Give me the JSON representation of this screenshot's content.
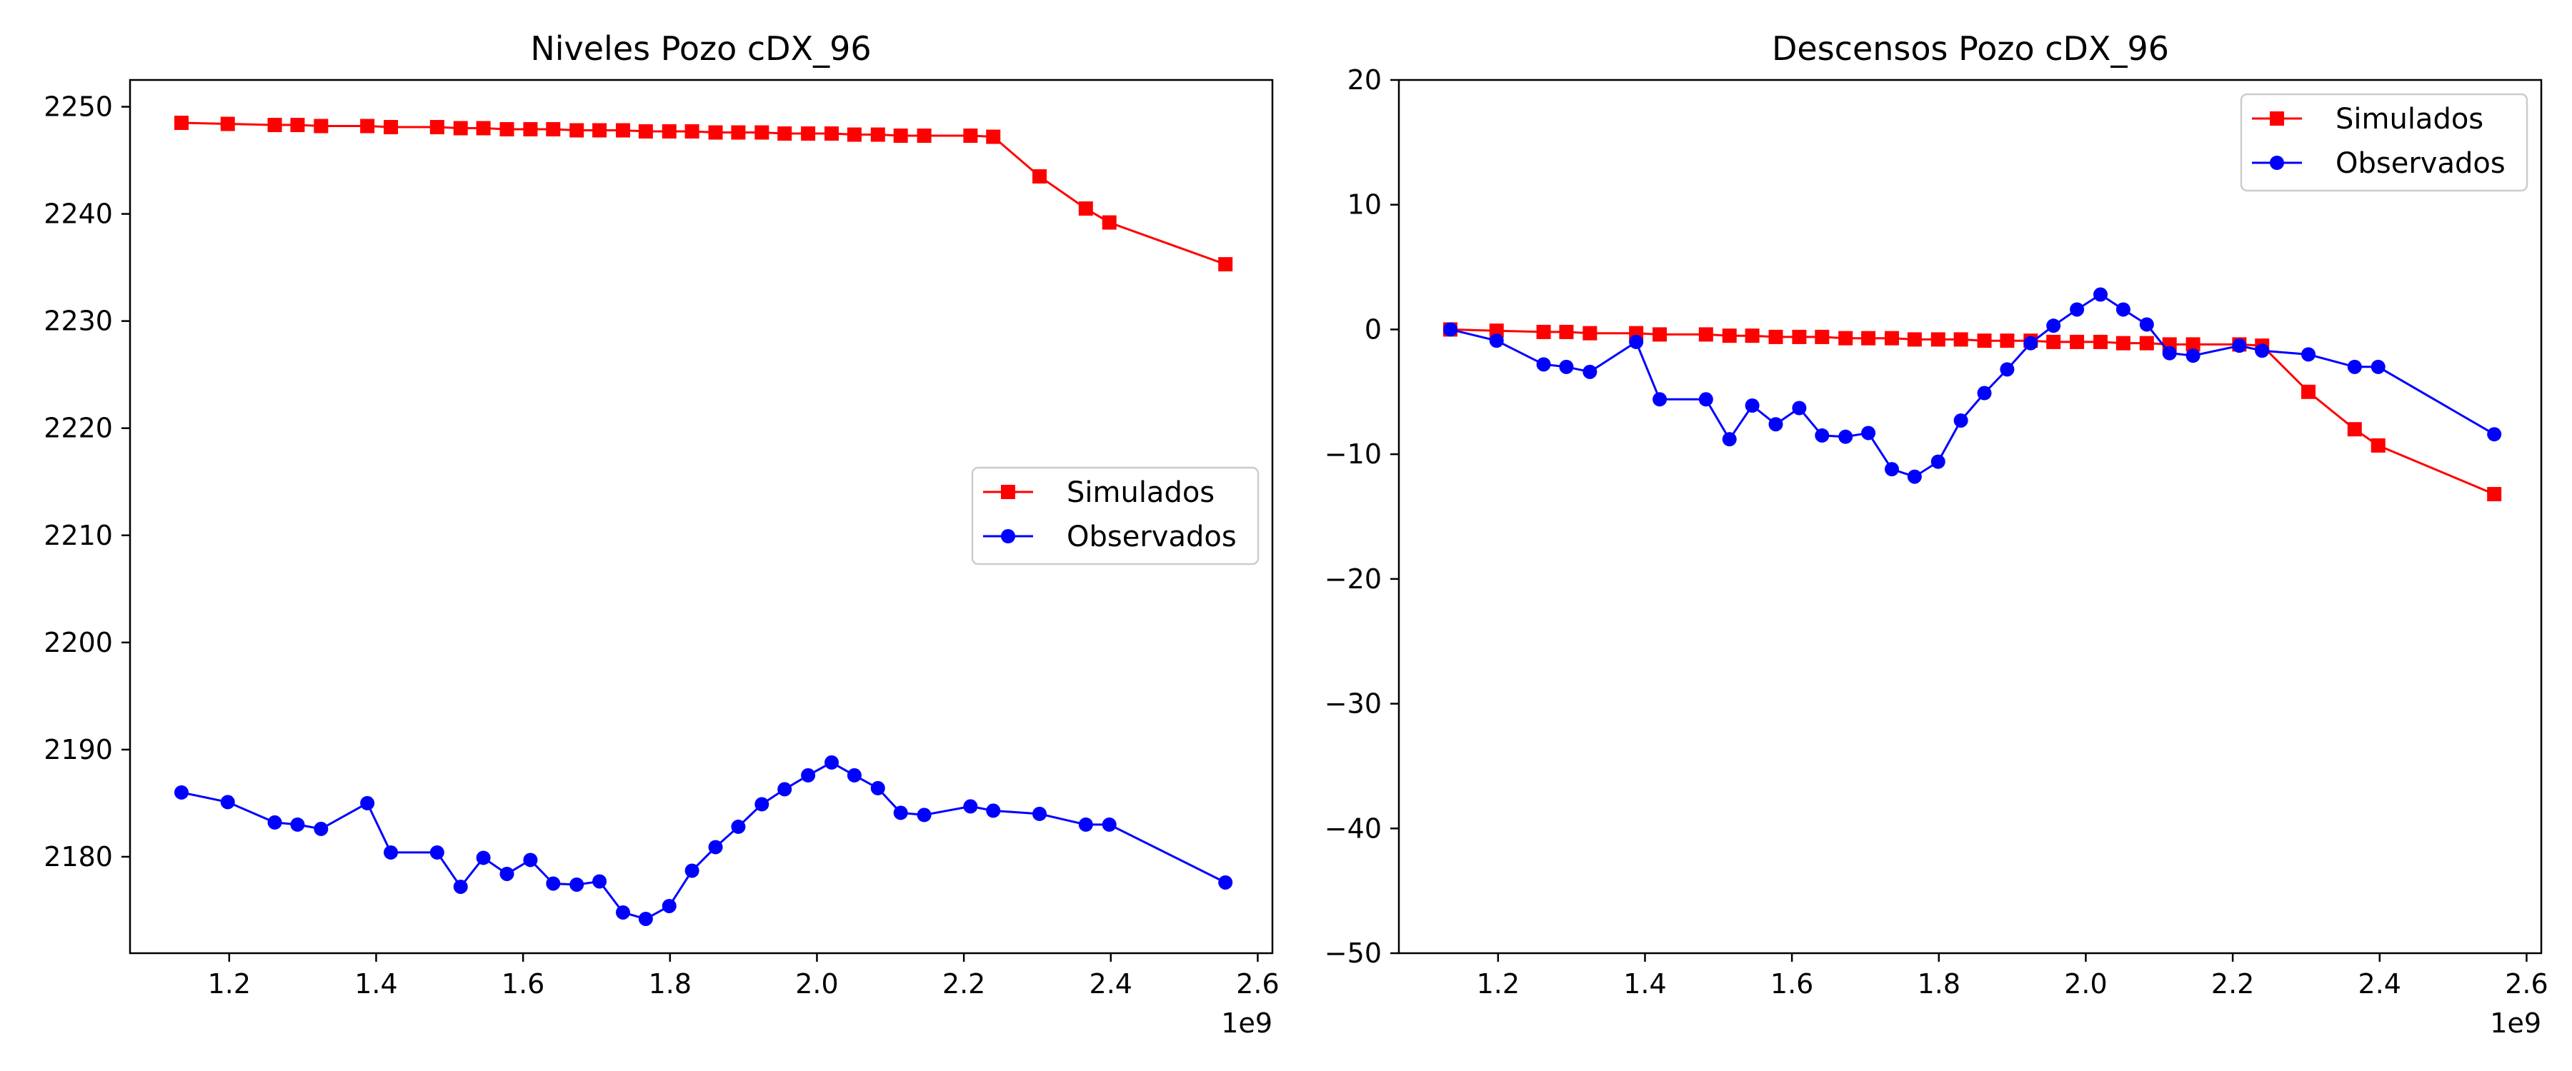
{
  "chart_data": [
    {
      "type": "line",
      "title": "Niveles Pozo cDX_96",
      "xlabel": "",
      "ylabel": "",
      "x_offset_label": "1e9",
      "xlim": [
        1.065,
        2.62
      ],
      "ylim": [
        2171.0,
        2252.5
      ],
      "xticks": [
        1.2,
        1.4,
        1.6,
        1.8,
        2.0,
        2.2,
        2.4,
        2.6
      ],
      "yticks": [
        2180,
        2190,
        2200,
        2210,
        2220,
        2230,
        2240,
        2250
      ],
      "grid": false,
      "legend": "center-right",
      "series": [
        {
          "name": "Simulados",
          "color": "#ff0000",
          "marker": "square",
          "x": [
            1.135,
            1.198,
            1.262,
            1.293,
            1.325,
            1.388,
            1.42,
            1.483,
            1.515,
            1.546,
            1.578,
            1.61,
            1.641,
            1.673,
            1.704,
            1.736,
            1.767,
            1.799,
            1.83,
            1.862,
            1.893,
            1.925,
            1.956,
            1.988,
            2.02,
            2.051,
            2.083,
            2.114,
            2.146,
            2.209,
            2.24,
            2.303,
            2.366,
            2.398,
            2.556
          ],
          "y": [
            2248.5,
            2248.4,
            2248.3,
            2248.3,
            2248.2,
            2248.2,
            2248.1,
            2248.1,
            2248.0,
            2248.0,
            2247.9,
            2247.9,
            2247.9,
            2247.8,
            2247.8,
            2247.8,
            2247.7,
            2247.7,
            2247.7,
            2247.6,
            2247.6,
            2247.6,
            2247.5,
            2247.5,
            2247.5,
            2247.4,
            2247.4,
            2247.3,
            2247.3,
            2247.3,
            2247.2,
            2243.5,
            2240.5,
            2239.2,
            2235.3
          ]
        },
        {
          "name": "Observados",
          "color": "#0000ff",
          "marker": "circle",
          "x": [
            1.135,
            1.198,
            1.262,
            1.293,
            1.325,
            1.388,
            1.42,
            1.483,
            1.515,
            1.546,
            1.578,
            1.61,
            1.641,
            1.673,
            1.704,
            1.736,
            1.767,
            1.799,
            1.83,
            1.862,
            1.893,
            1.925,
            1.956,
            1.988,
            2.02,
            2.051,
            2.083,
            2.114,
            2.146,
            2.209,
            2.24,
            2.303,
            2.366,
            2.398,
            2.556
          ],
          "y": [
            2186.0,
            2185.1,
            2183.2,
            2183.0,
            2182.6,
            2185.0,
            2180.4,
            2180.4,
            2177.2,
            2179.9,
            2178.4,
            2179.7,
            2177.5,
            2177.4,
            2177.7,
            2174.8,
            2174.2,
            2175.4,
            2178.7,
            2180.9,
            2182.8,
            2184.9,
            2186.3,
            2187.6,
            2188.8,
            2187.6,
            2186.4,
            2184.1,
            2183.9,
            2184.7,
            2184.3,
            2184.0,
            2183.0,
            2183.0,
            2177.6
          ]
        }
      ]
    },
    {
      "type": "line",
      "title": "Descensos Pozo cDX_96",
      "xlabel": "",
      "ylabel": "",
      "x_offset_label": "1e9",
      "xlim": [
        1.065,
        2.62
      ],
      "ylim": [
        -50,
        20
      ],
      "xticks": [
        1.2,
        1.4,
        1.6,
        1.8,
        2.0,
        2.2,
        2.4,
        2.6
      ],
      "yticks": [
        -50,
        -40,
        -30,
        -20,
        -10,
        0,
        10,
        20
      ],
      "grid": false,
      "legend": "top-right",
      "series": [
        {
          "name": "Simulados",
          "color": "#ff0000",
          "marker": "square",
          "x": [
            1.135,
            1.198,
            1.262,
            1.293,
            1.325,
            1.388,
            1.42,
            1.483,
            1.515,
            1.546,
            1.578,
            1.61,
            1.641,
            1.673,
            1.704,
            1.736,
            1.767,
            1.799,
            1.83,
            1.862,
            1.893,
            1.925,
            1.956,
            1.988,
            2.02,
            2.051,
            2.083,
            2.114,
            2.146,
            2.209,
            2.24,
            2.303,
            2.366,
            2.398,
            2.556
          ],
          "y": [
            0.0,
            -0.1,
            -0.2,
            -0.2,
            -0.3,
            -0.3,
            -0.4,
            -0.4,
            -0.5,
            -0.5,
            -0.6,
            -0.6,
            -0.6,
            -0.7,
            -0.7,
            -0.7,
            -0.8,
            -0.8,
            -0.8,
            -0.9,
            -0.9,
            -0.9,
            -1.0,
            -1.0,
            -1.0,
            -1.1,
            -1.1,
            -1.2,
            -1.2,
            -1.2,
            -1.3,
            -5.0,
            -8.0,
            -9.3,
            -13.2
          ]
        },
        {
          "name": "Observados",
          "color": "#0000ff",
          "marker": "circle",
          "x": [
            1.135,
            1.198,
            1.262,
            1.293,
            1.325,
            1.388,
            1.42,
            1.483,
            1.515,
            1.546,
            1.578,
            1.61,
            1.641,
            1.673,
            1.704,
            1.736,
            1.767,
            1.799,
            1.83,
            1.862,
            1.893,
            1.925,
            1.956,
            1.988,
            2.02,
            2.051,
            2.083,
            2.114,
            2.146,
            2.209,
            2.24,
            2.303,
            2.366,
            2.398,
            2.556
          ],
          "y": [
            0.0,
            -0.9,
            -2.8,
            -3.0,
            -3.4,
            -1.0,
            -5.6,
            -5.6,
            -8.8,
            -6.1,
            -7.6,
            -6.3,
            -8.5,
            -8.6,
            -8.3,
            -11.2,
            -11.8,
            -10.6,
            -7.3,
            -5.1,
            -3.2,
            -1.1,
            0.3,
            1.6,
            2.8,
            1.6,
            0.4,
            -1.9,
            -2.1,
            -1.3,
            -1.7,
            -2.0,
            -3.0,
            -3.0,
            -8.4
          ]
        }
      ]
    }
  ]
}
